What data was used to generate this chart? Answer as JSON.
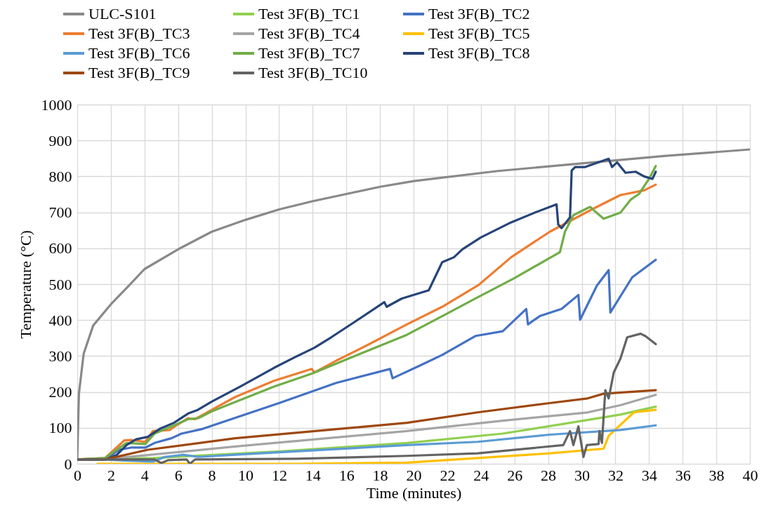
{
  "chart_data": {
    "type": "line",
    "xlabel": "Time (minutes)",
    "ylabel": "Temperature (°C)",
    "xlim": [
      0,
      40
    ],
    "xticks": [
      0,
      2,
      4,
      6,
      8,
      10,
      12,
      14,
      16,
      18,
      20,
      22,
      24,
      26,
      28,
      30,
      32,
      34,
      36,
      38,
      40
    ],
    "ylim": [
      0,
      1000
    ],
    "yticks": [
      0,
      100,
      200,
      300,
      400,
      500,
      600,
      700,
      800,
      900,
      1000
    ],
    "grid": true,
    "legend": "top",
    "line_style": "solid",
    "marker": "none",
    "series": [
      {
        "name": "ULC-S101",
        "color": "#898989",
        "x": [
          0,
          0.1,
          0.38,
          0.95,
          2,
          3.07,
          4,
          6,
          8,
          10,
          12,
          14,
          16,
          18,
          20,
          25,
          30,
          35,
          40
        ],
        "values": [
          12,
          195,
          306,
          385,
          444,
          496,
          542,
          597,
          646,
          679,
          708,
          731,
          751,
          771,
          787,
          815,
          836,
          857,
          875
        ]
      },
      {
        "name": "Test 3F(B)_TC1",
        "color": "#92d050",
        "x": [
          0,
          4.5,
          12.25,
          19.6,
          25.3,
          28.8,
          32.3,
          34.4
        ],
        "values": [
          12,
          16,
          35,
          58,
          84,
          110,
          137,
          159
        ]
      },
      {
        "name": "Test 3F(B)_TC2",
        "color": "#4472c4",
        "x": [
          0,
          1.65,
          2.5,
          3.2,
          4.05,
          4.6,
          5.6,
          6.2,
          7.45,
          12,
          15.4,
          18.6,
          18.75,
          20.4,
          21.7,
          23.7,
          25.3,
          26.7,
          26.8,
          27.5,
          28.8,
          29.8,
          29.9,
          30.9,
          31.6,
          31.7,
          33,
          34.4
        ],
        "values": [
          12,
          12,
          39,
          45,
          45,
          58,
          71,
          84,
          97,
          169,
          225,
          264,
          238,
          274,
          303,
          356,
          369,
          431,
          388,
          411,
          431,
          470,
          401,
          496,
          539,
          421,
          519,
          568
        ]
      },
      {
        "name": "Test 3F(B)_TC3",
        "color": "#ed7d31",
        "x": [
          0,
          1.65,
          2.8,
          3.2,
          4.05,
          4.5,
          5.5,
          5.8,
          6.6,
          7,
          8,
          9.4,
          11.7,
          13.95,
          14.1,
          15.4,
          17.2,
          19.6,
          21.7,
          23.9,
          25.8,
          28.1,
          30.6,
          32.3,
          33.7,
          34.4
        ],
        "values": [
          12,
          16,
          65,
          66,
          61,
          91,
          94,
          104,
          127,
          124,
          150,
          186,
          231,
          264,
          254,
          287,
          329,
          388,
          437,
          499,
          575,
          646,
          708,
          748,
          761,
          777
        ]
      },
      {
        "name": "Test 3F(B)_TC4",
        "color": "#a5a5a5",
        "x": [
          0,
          2.36,
          9.4,
          19.6,
          25.3,
          30.35,
          32.3,
          34.4
        ],
        "values": [
          12,
          16,
          48,
          91,
          120,
          143,
          163,
          192
        ]
      },
      {
        "name": "Test 3F(B)_TC5",
        "color": "#ffc000",
        "x": [
          1.2,
          13,
          19.6,
          23.8,
          28.1,
          31.3,
          31.6,
          33.1,
          34.4
        ],
        "values": [
          0,
          0,
          3,
          16,
          29,
          42,
          78,
          143,
          150
        ]
      },
      {
        "name": "Test 3F(B)_TC6",
        "color": "#5b9bd5",
        "x": [
          0,
          1.65,
          2.8,
          4.5,
          5.2,
          6.3,
          7.2,
          9.4,
          19.6,
          23.8,
          28.1,
          32.3,
          34.4
        ],
        "values": [
          12,
          12,
          9,
          6,
          19,
          25,
          19,
          25,
          52,
          61,
          81,
          94,
          107
        ]
      },
      {
        "name": "Test 3F(B)_TC7",
        "color": "#70ad47",
        "x": [
          0,
          1.65,
          2.93,
          4.05,
          4.6,
          5.75,
          6.6,
          7.2,
          8,
          11.7,
          13.95,
          16.5,
          19.6,
          21.7,
          23.8,
          25.96,
          28.7,
          29,
          29.5,
          30.35,
          30.5,
          30.8,
          31.3,
          32.3,
          32.9,
          33.4,
          34,
          34.4
        ],
        "values": [
          12,
          16,
          58,
          55,
          84,
          107,
          124,
          127,
          146,
          215,
          251,
          300,
          359,
          411,
          463,
          516,
          589,
          646,
          692,
          712,
          715,
          702,
          682,
          699,
          735,
          751,
          793,
          829
        ]
      },
      {
        "name": "Test 3F(B)_TC8",
        "color": "#264478",
        "x": [
          0,
          1.7,
          2.36,
          2.93,
          3.5,
          4.2,
          4.9,
          5.75,
          6.6,
          7.17,
          8,
          9.7,
          11.7,
          12.96,
          14.1,
          15.1,
          16.5,
          18.26,
          18.4,
          19.3,
          20.9,
          21.3,
          21.7,
          22.4,
          22.9,
          24,
          25.8,
          27.2,
          28.5,
          28.6,
          28.8,
          29.3,
          29.4,
          29.6,
          30.2,
          31.6,
          31.8,
          32.1,
          32.6,
          33.2,
          33.7,
          34.2,
          34.4
        ],
        "values": [
          12,
          12,
          25,
          52,
          68,
          75,
          97,
          114,
          140,
          150,
          173,
          215,
          267,
          297,
          323,
          352,
          395,
          450,
          437,
          460,
          483,
          522,
          561,
          575,
          597,
          630,
          672,
          699,
          722,
          666,
          656,
          686,
          816,
          826,
          826,
          849,
          826,
          839,
          810,
          813,
          800,
          793,
          813
        ]
      },
      {
        "name": "Test 3F(B)_TC9",
        "color": "#9e480e",
        "x": [
          0,
          1.65,
          4.2,
          9.4,
          19.6,
          23.8,
          28.1,
          30.35,
          31.3,
          34.4
        ],
        "values": [
          12,
          12,
          39,
          71,
          114,
          143,
          169,
          182,
          195,
          205
        ]
      },
      {
        "name": "Test 3F(B)_TC10",
        "color": "#636363",
        "x": [
          0,
          4.6,
          5,
          5.4,
          6.5,
          6.7,
          7,
          13,
          19.6,
          23.8,
          28.9,
          29.3,
          29.5,
          29.8,
          30.1,
          30.3,
          31,
          31.05,
          31.2,
          31.4,
          31.6,
          31.9,
          32.3,
          32.7,
          33.5,
          33.8,
          34.4
        ],
        "values": [
          12,
          12,
          2,
          10,
          12,
          0,
          12,
          14,
          22,
          29,
          52,
          91,
          52,
          104,
          19,
          52,
          55,
          91,
          58,
          205,
          182,
          254,
          293,
          352,
          362,
          355,
          333
        ]
      }
    ]
  }
}
